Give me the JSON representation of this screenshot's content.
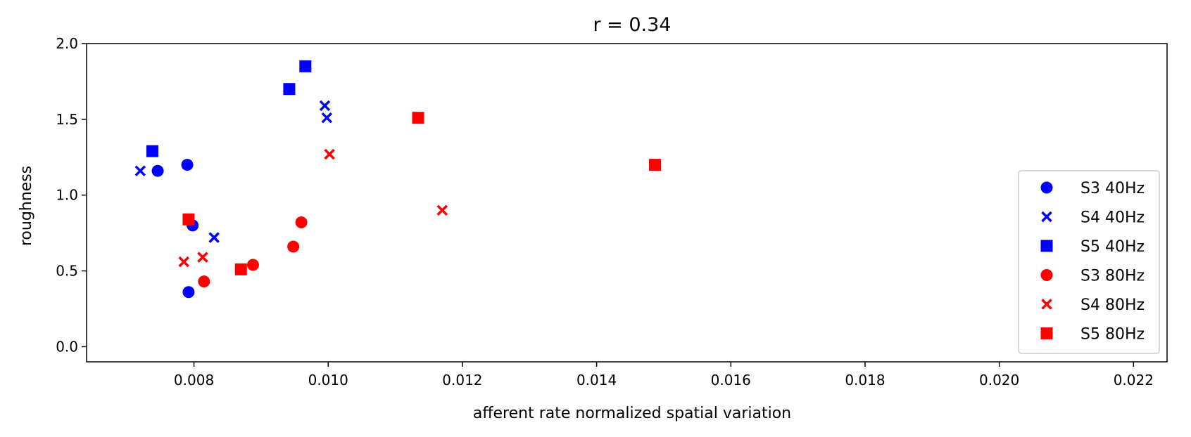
{
  "chart_data": {
    "type": "scatter",
    "title": "r = 0.34",
    "xlabel": "afferent rate normalized spatial variation",
    "ylabel": "roughness",
    "xlim": [
      0.0064,
      0.0225
    ],
    "ylim": [
      -0.1,
      2.0
    ],
    "xticks": [
      0.008,
      0.01,
      0.012,
      0.014,
      0.016,
      0.018,
      0.02,
      0.022
    ],
    "xtick_labels": [
      "0.008",
      "0.010",
      "0.012",
      "0.014",
      "0.016",
      "0.018",
      "0.020",
      "0.022"
    ],
    "yticks": [
      0.0,
      0.5,
      1.0,
      1.5,
      2.0
    ],
    "ytick_labels": [
      "0.0",
      "0.5",
      "1.0",
      "1.5",
      "2.0"
    ],
    "grid": false,
    "legend_position": "right",
    "series": [
      {
        "name": "S3 40Hz",
        "marker": "circle",
        "color": "#0000ff",
        "x": [
          0.00746,
          0.0079,
          0.00798,
          0.00792
        ],
        "y": [
          1.16,
          1.2,
          0.8,
          0.36
        ]
      },
      {
        "name": "S4 40Hz",
        "marker": "x",
        "color": "#0000ff",
        "x": [
          0.0072,
          0.0083,
          0.00995,
          0.00998
        ],
        "y": [
          1.16,
          0.72,
          1.59,
          1.51
        ]
      },
      {
        "name": "S5 40Hz",
        "marker": "square",
        "color": "#0000ff",
        "x": [
          0.00738,
          0.00942,
          0.00966
        ],
        "y": [
          1.29,
          1.7,
          1.85
        ]
      },
      {
        "name": "S3 80Hz",
        "marker": "circle",
        "color": "#ff0000",
        "x": [
          0.00815,
          0.00888,
          0.00948,
          0.0096
        ],
        "y": [
          0.43,
          0.54,
          0.66,
          0.82
        ]
      },
      {
        "name": "S4 80Hz",
        "marker": "x",
        "color": "#ff0000",
        "x": [
          0.00785,
          0.00813,
          0.01002,
          0.0117
        ],
        "y": [
          0.56,
          0.59,
          1.27,
          0.9
        ]
      },
      {
        "name": "S5 80Hz",
        "marker": "square",
        "color": "#ff0000",
        "x": [
          0.00792,
          0.0087,
          0.01134,
          0.01487
        ],
        "y": [
          0.84,
          0.51,
          1.51,
          1.2
        ]
      }
    ]
  }
}
